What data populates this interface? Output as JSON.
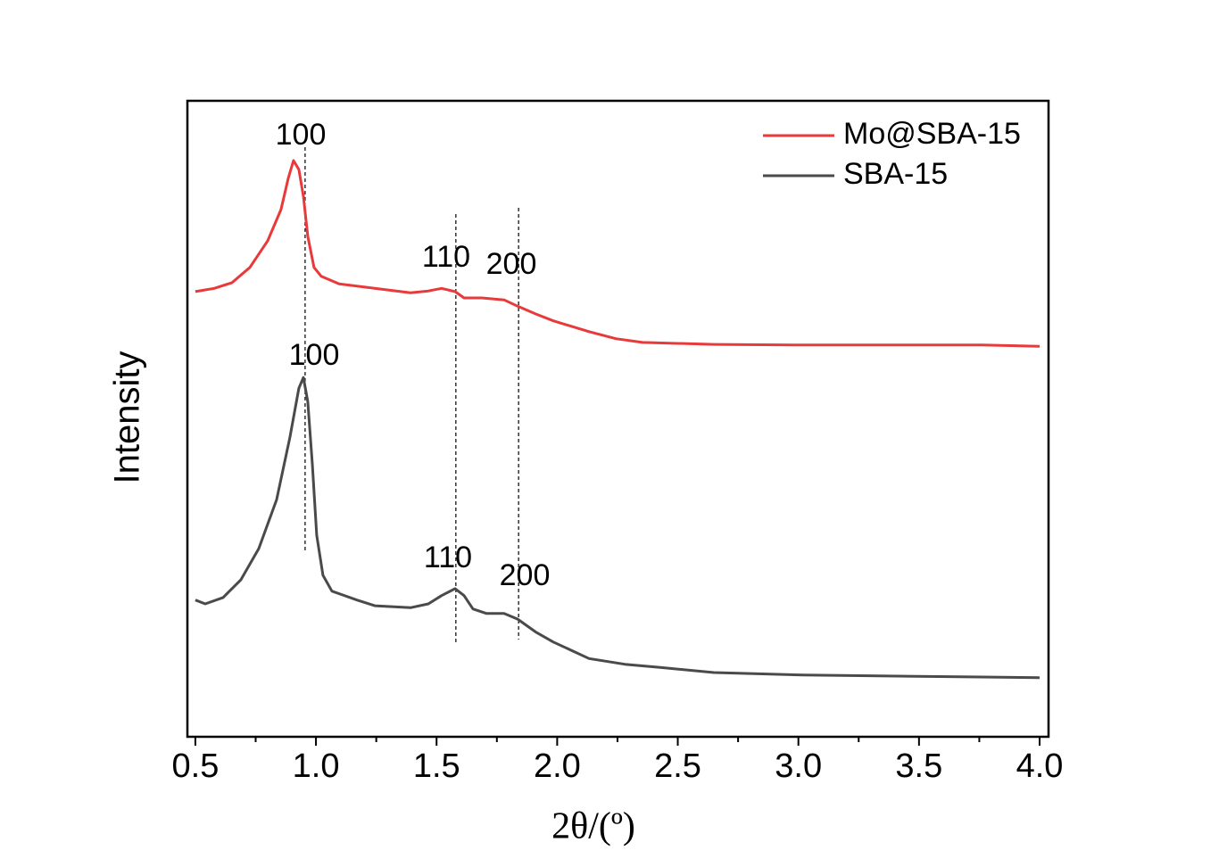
{
  "chart_data": {
    "type": "line",
    "xlabel": "2θ/(º)",
    "ylabel": "Intensity",
    "xlim": [
      0.467,
      4.037
    ],
    "ylim": [
      0,
      100
    ],
    "xticks": [
      0.5,
      {
        "value": 1,
        "label": "1.0"
      },
      1.5,
      {
        "value": 2,
        "label": "2.0"
      },
      2.5,
      {
        "value": 3,
        "label": "3.0"
      },
      3.5,
      {
        "value": 4,
        "label": "4.0"
      }
    ],
    "xminorticks": [
      0.75,
      1.25,
      1.75,
      2.25,
      2.75,
      3.25,
      3.75
    ],
    "legend": "upper right",
    "reference_lines": [
      0.955,
      1.58,
      1.84
    ],
    "annotations": [
      "100",
      "110",
      "200",
      "100",
      "110",
      "200"
    ],
    "series": [
      {
        "name": "Mo@SBA-15",
        "color": "#e8393b",
        "x": [
          0.5,
          0.578,
          0.652,
          0.726,
          0.8,
          0.855,
          0.885,
          0.907,
          0.929,
          0.948,
          0.966,
          0.992,
          1.022,
          1.096,
          1.244,
          1.392,
          1.466,
          1.521,
          1.577,
          1.614,
          1.688,
          1.78,
          1.836,
          1.91,
          1.984,
          2.132,
          2.243,
          2.354,
          2.65,
          3.019,
          3.759,
          4.0
        ],
        "values": [
          70.0,
          70.5,
          71.4,
          73.8,
          78.0,
          82.9,
          87.8,
          90.6,
          89.2,
          85.0,
          78.7,
          73.8,
          72.4,
          71.2,
          70.5,
          69.8,
          70.1,
          70.5,
          70.0,
          69.0,
          69.0,
          68.7,
          67.7,
          66.5,
          65.4,
          63.7,
          62.6,
          62.0,
          61.7,
          61.6,
          61.6,
          61.4
        ]
      },
      {
        "name": "SBA-15",
        "color": "#4a4a4a",
        "x": [
          0.5,
          0.541,
          0.615,
          0.689,
          0.763,
          0.837,
          0.892,
          0.929,
          0.948,
          0.966,
          0.985,
          1.003,
          1.029,
          1.066,
          1.17,
          1.244,
          1.392,
          1.466,
          1.521,
          1.577,
          1.614,
          1.651,
          1.706,
          1.78,
          1.836,
          1.91,
          1.984,
          2.132,
          2.28,
          2.427,
          2.65,
          3.019,
          3.759,
          4.0
        ],
        "values": [
          21.5,
          20.9,
          21.9,
          24.7,
          29.6,
          37.3,
          47.1,
          54.8,
          56.5,
          52.7,
          42.9,
          31.7,
          25.4,
          22.9,
          21.5,
          20.6,
          20.3,
          20.9,
          22.2,
          23.3,
          22.2,
          20.1,
          19.4,
          19.4,
          18.5,
          16.5,
          14.9,
          12.3,
          11.4,
          10.9,
          10.1,
          9.7,
          9.4,
          9.3
        ]
      }
    ]
  }
}
